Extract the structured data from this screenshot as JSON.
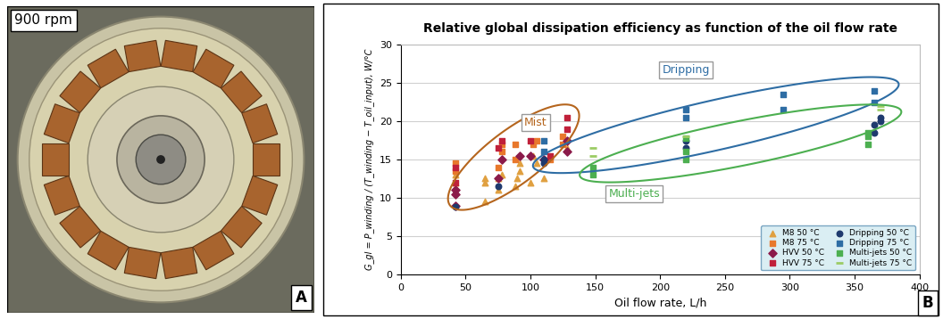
{
  "photo_panel": {
    "caption": "900 rpm",
    "label": "A"
  },
  "chart_data": {
    "type": "scatter",
    "panel_label": "B",
    "title": "Relative global dissipation efficiency as function of the oil flow rate",
    "x_label": "Oil flow rate, L/h",
    "y_label": "G_gl = P_winding / (T_winding − T_oil_input), W/°C",
    "xlim": [
      0,
      400
    ],
    "xticks": [
      0,
      50,
      100,
      150,
      200,
      250,
      300,
      350,
      400
    ],
    "ylim": [
      0,
      30
    ],
    "yticks": [
      0,
      5,
      10,
      15,
      20,
      25,
      30
    ],
    "grid": "y",
    "legend": "lower right",
    "annotations": [
      {
        "text": "Mist",
        "color": "#b5651d"
      },
      {
        "text": "Dripping",
        "color": "#2e6da4"
      },
      {
        "text": "Multi-jets",
        "color": "#4caf50"
      }
    ],
    "series": [
      {
        "name": "M8 50 °C",
        "color": "#e0a040",
        "marker": "triangle",
        "x": [
          42,
          42,
          65,
          65,
          65,
          75,
          75,
          78,
          88,
          90,
          92,
          92,
          100,
          102,
          105,
          110,
          128
        ],
        "values": [
          12,
          13,
          9.5,
          12,
          12.5,
          11,
          12.5,
          13,
          11.5,
          12.5,
          13.5,
          14.5,
          12,
          15.5,
          14.5,
          12.5,
          16.5
        ]
      },
      {
        "name": "M8 75 °C",
        "color": "#e8782c",
        "marker": "square",
        "x": [
          42,
          42,
          75,
          78,
          78,
          88,
          88,
          102,
          105,
          115,
          125,
          125
        ],
        "values": [
          13.5,
          14.5,
          14,
          16,
          17,
          15,
          17,
          17,
          17.5,
          15,
          17,
          18
        ]
      },
      {
        "name": "HVV 50 °C",
        "color": "#8b1a4a",
        "marker": "diamond",
        "x": [
          42,
          42,
          42,
          75,
          78,
          92,
          100,
          110,
          128,
          128
        ],
        "values": [
          9,
          10.5,
          11,
          12.5,
          15,
          15.5,
          15.5,
          15,
          16,
          17.5
        ]
      },
      {
        "name": "HVV 75 °C",
        "color": "#c0203a",
        "marker": "square",
        "x": [
          42,
          42,
          75,
          78,
          100,
          128,
          128,
          115
        ],
        "values": [
          12,
          14,
          16.5,
          17.5,
          17.5,
          19,
          20.5,
          15.5
        ]
      },
      {
        "name": "Dripping 50 °C",
        "color": "#1f3a6e",
        "marker": "circle",
        "x": [
          42,
          75,
          110,
          110,
          220,
          220,
          365,
          365,
          370,
          370
        ],
        "values": [
          8.8,
          11.5,
          14.5,
          15,
          17.5,
          16.5,
          18.5,
          19.5,
          20,
          20.5
        ]
      },
      {
        "name": "Dripping 75 °C",
        "color": "#2e6da4",
        "marker": "square",
        "x": [
          110,
          110,
          220,
          220,
          295,
          295,
          365,
          365
        ],
        "values": [
          16,
          17.5,
          20.5,
          21.5,
          21.5,
          23.5,
          22.5,
          24
        ]
      },
      {
        "name": "Multi-jets 50 °C",
        "color": "#4caf50",
        "marker": "square",
        "x": [
          148,
          148,
          220,
          220,
          220,
          360,
          360,
          360
        ],
        "values": [
          13,
          14,
          15,
          16,
          17.8,
          17,
          18,
          18.5
        ]
      },
      {
        "name": "Multi-jets 75 °C",
        "color": "#9ccc65",
        "marker": "dash",
        "x": [
          148,
          148,
          220,
          370,
          370
        ],
        "values": [
          15.5,
          16.5,
          18,
          21.5,
          22
        ]
      }
    ]
  }
}
